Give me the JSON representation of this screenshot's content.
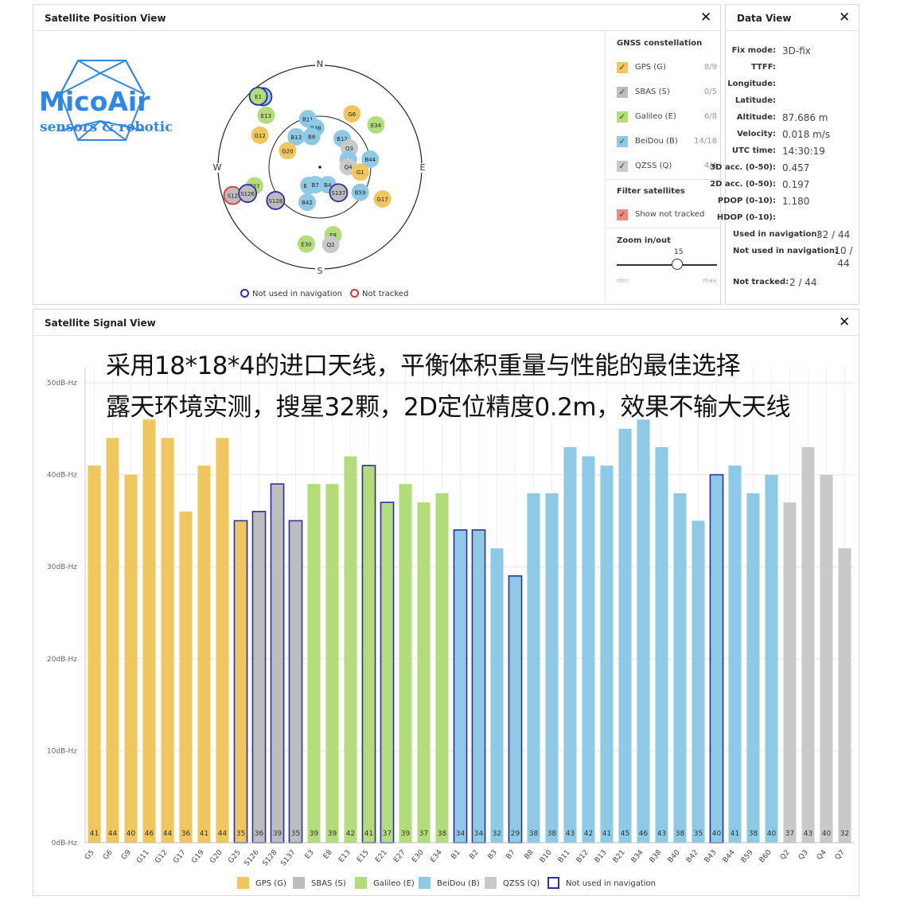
{
  "position_view": {
    "title": "Satellite Position View",
    "logo": {
      "name": "MicoAir",
      "tagline": "sensors & robotics"
    },
    "compass": {
      "n": "N",
      "e": "E",
      "s": "S",
      "w": "W"
    },
    "legend": {
      "not_used": "Not used in navigation",
      "not_tracked": "Not tracked"
    },
    "satellites": [
      {
        "id": "B43",
        "az": -39,
        "el": 10,
        "type": "beidou",
        "not_used": true
      },
      {
        "id": "E1",
        "az": -41,
        "el": 7,
        "type": "galileo",
        "not_used": true
      },
      {
        "id": "E13",
        "az": -46,
        "el": 24,
        "type": "galileo"
      },
      {
        "id": "B11",
        "az": -14,
        "el": 46,
        "type": "beidou"
      },
      {
        "id": "B38",
        "az": -6,
        "el": 55,
        "type": "beidou"
      },
      {
        "id": "B8",
        "az": -15,
        "el": 62,
        "type": "beidou"
      },
      {
        "id": "B13",
        "az": -38,
        "el": 56,
        "type": "beidou"
      },
      {
        "id": "G12",
        "az": -62,
        "el": 30,
        "type": "gps"
      },
      {
        "id": "G20",
        "az": -63,
        "el": 58,
        "type": "gps"
      },
      {
        "id": "G6",
        "az": 31,
        "el": 35,
        "type": "gps"
      },
      {
        "id": "E34",
        "az": 53,
        "el": 28,
        "type": "galileo"
      },
      {
        "id": "B12",
        "az": 38,
        "el": 58,
        "type": "beidou"
      },
      {
        "id": "Q3",
        "az": 57,
        "el": 59,
        "type": "qzss"
      },
      {
        "id": "B3",
        "az": 75,
        "el": 64,
        "type": "beidou"
      },
      {
        "id": "B44",
        "az": 81,
        "el": 45,
        "type": "beidou"
      },
      {
        "id": "Q4",
        "az": 89,
        "el": 65,
        "type": "qzss"
      },
      {
        "id": "G1",
        "az": 97,
        "el": 54,
        "type": "gps"
      },
      {
        "id": "E27",
        "az": -106,
        "el": 30,
        "type": "galileo"
      },
      {
        "id": "S12",
        "az": -108,
        "el": 9,
        "type": "sbas",
        "not_tracked": true
      },
      {
        "id": "S126",
        "az": -110,
        "el": 22,
        "type": "sbas",
        "not_used": true
      },
      {
        "id": "S128",
        "az": -127,
        "el": 41,
        "type": "sbas",
        "not_used": true
      },
      {
        "id": "B10",
        "az": -149,
        "el": 71,
        "type": "beidou"
      },
      {
        "id": "B7",
        "az": -165,
        "el": 74,
        "type": "beidou"
      },
      {
        "id": "B42",
        "az": -160,
        "el": 57,
        "type": "beidou"
      },
      {
        "id": "B4",
        "az": 156,
        "el": 73,
        "type": "beidou"
      },
      {
        "id": "S137",
        "az": 144,
        "el": 62,
        "type": "sbas",
        "not_used": true
      },
      {
        "id": "B59",
        "az": 122,
        "el": 48,
        "type": "beidou"
      },
      {
        "id": "G17",
        "az": 117,
        "el": 28,
        "type": "gps"
      },
      {
        "id": "E8",
        "az": 169,
        "el": 29,
        "type": "galileo"
      },
      {
        "id": "Q2",
        "az": 172,
        "el": 21,
        "type": "qzss"
      },
      {
        "id": "E30",
        "az": -170,
        "el": 21,
        "type": "galileo"
      }
    ]
  },
  "controls": {
    "gnss_title": "GNSS constellation",
    "constellations": [
      {
        "label": "GPS (G)",
        "count": "8/9",
        "color": "#f0c75e",
        "checked": true
      },
      {
        "label": "SBAS (S)",
        "count": "0/5",
        "color": "#bdbdbd",
        "checked": true
      },
      {
        "label": "Galileo (E)",
        "count": "6/8",
        "color": "#b3dc7a",
        "checked": true
      },
      {
        "label": "BeiDou (B)",
        "count": "14/18",
        "color": "#8ecae6",
        "checked": true
      },
      {
        "label": "QZSS (Q)",
        "count": "4/4",
        "color": "#c9c9c9",
        "checked": true
      }
    ],
    "filter_title": "Filter satellites",
    "show_not_tracked": "Show not tracked",
    "zoom_title": "Zoom in/out",
    "zoom_value": "15",
    "zoom_min": "min",
    "zoom_max": "max"
  },
  "data_view": {
    "title": "Data View",
    "rows": [
      {
        "key": "Fix mode:",
        "value": "3D-fix"
      },
      {
        "key": "TTFF:",
        "value": ""
      },
      {
        "key": "Longitude:",
        "value": ""
      },
      {
        "key": "Latitude:",
        "value": ""
      },
      {
        "key": "Altitude:",
        "value": "87.686 m"
      },
      {
        "key": "Velocity:",
        "value": "0.018 m/s"
      },
      {
        "key": "UTC time:",
        "value": "14:30:19"
      },
      {
        "key": "3D acc. (0-50):",
        "value": "0.457"
      },
      {
        "key": "2D acc. (0-50):",
        "value": "0.197"
      },
      {
        "key": "PDOP (0-10):",
        "value": "1.180"
      },
      {
        "key": "HDOP (0-10):",
        "value": ""
      },
      {
        "key": "Used in navigation:",
        "value": "32 / 44"
      },
      {
        "key": "Not used in navigation:",
        "value": "10 / 44"
      },
      {
        "key": "Not tracked:",
        "value": "2 / 44"
      }
    ]
  },
  "signal_view": {
    "title": "Satellite Signal View",
    "overlay_line1": "采用18*18*4的进口天线，平衡体积重量与性能的最佳选择",
    "overlay_line2": "露天环境实测，搜星32颗，2D定位精度0.2m，效果不输大天线",
    "legend": [
      {
        "label": "GPS (G)",
        "color": "#f0c75e"
      },
      {
        "label": "SBAS (S)",
        "color": "#bdbdbd"
      },
      {
        "label": "Galileo (E)",
        "color": "#b3dc7a"
      },
      {
        "label": "BeiDou (B)",
        "color": "#8ecae6"
      },
      {
        "label": "QZSS (Q)",
        "color": "#c9c9c9"
      },
      {
        "label": "Not used in navigation",
        "color": "#2c2fa8"
      }
    ]
  },
  "chart_data": {
    "type": "bar",
    "ylabel_ticks": [
      "0dB-Hz",
      "10dB-Hz",
      "20dB-Hz",
      "30dB-Hz",
      "40dB-Hz",
      "50dB-Hz"
    ],
    "ylim": [
      0,
      50
    ],
    "grid": true,
    "legend_placement": "bottom",
    "categories": [
      "G5",
      "G6",
      "G9",
      "G11",
      "G12",
      "G17",
      "G19",
      "G20",
      "G25",
      "S126",
      "S128",
      "S137",
      "E3",
      "E8",
      "E13",
      "E15",
      "E21",
      "E27",
      "E30",
      "E34",
      "B1",
      "B2",
      "B3",
      "B7",
      "B8",
      "B10",
      "B11",
      "B12",
      "B13",
      "B21",
      "B34",
      "B38",
      "B40",
      "B42",
      "B43",
      "B44",
      "B59",
      "B60",
      "Q2",
      "Q3",
      "Q4",
      "Q7"
    ],
    "values": [
      41,
      44,
      40,
      46,
      44,
      36,
      41,
      44,
      35,
      36,
      39,
      35,
      39,
      39,
      42,
      41,
      37,
      39,
      37,
      38,
      34,
      34,
      32,
      29,
      38,
      38,
      43,
      42,
      41,
      45,
      46,
      43,
      38,
      35,
      40,
      41,
      38,
      40,
      37,
      43,
      40,
      32
    ],
    "constellation": [
      "gps",
      "gps",
      "gps",
      "gps",
      "gps",
      "gps",
      "gps",
      "gps",
      "gps",
      "sbas",
      "sbas",
      "sbas",
      "galileo",
      "galileo",
      "galileo",
      "galileo",
      "galileo",
      "galileo",
      "galileo",
      "galileo",
      "beidou",
      "beidou",
      "beidou",
      "beidou",
      "beidou",
      "beidou",
      "beidou",
      "beidou",
      "beidou",
      "beidou",
      "beidou",
      "beidou",
      "beidou",
      "beidou",
      "beidou",
      "beidou",
      "beidou",
      "beidou",
      "qzss",
      "qzss",
      "qzss",
      "qzss"
    ],
    "not_used_in_navigation": [
      "G25",
      "S126",
      "S128",
      "S137",
      "E15",
      "E21",
      "B1",
      "B2",
      "B7",
      "B43"
    ]
  }
}
